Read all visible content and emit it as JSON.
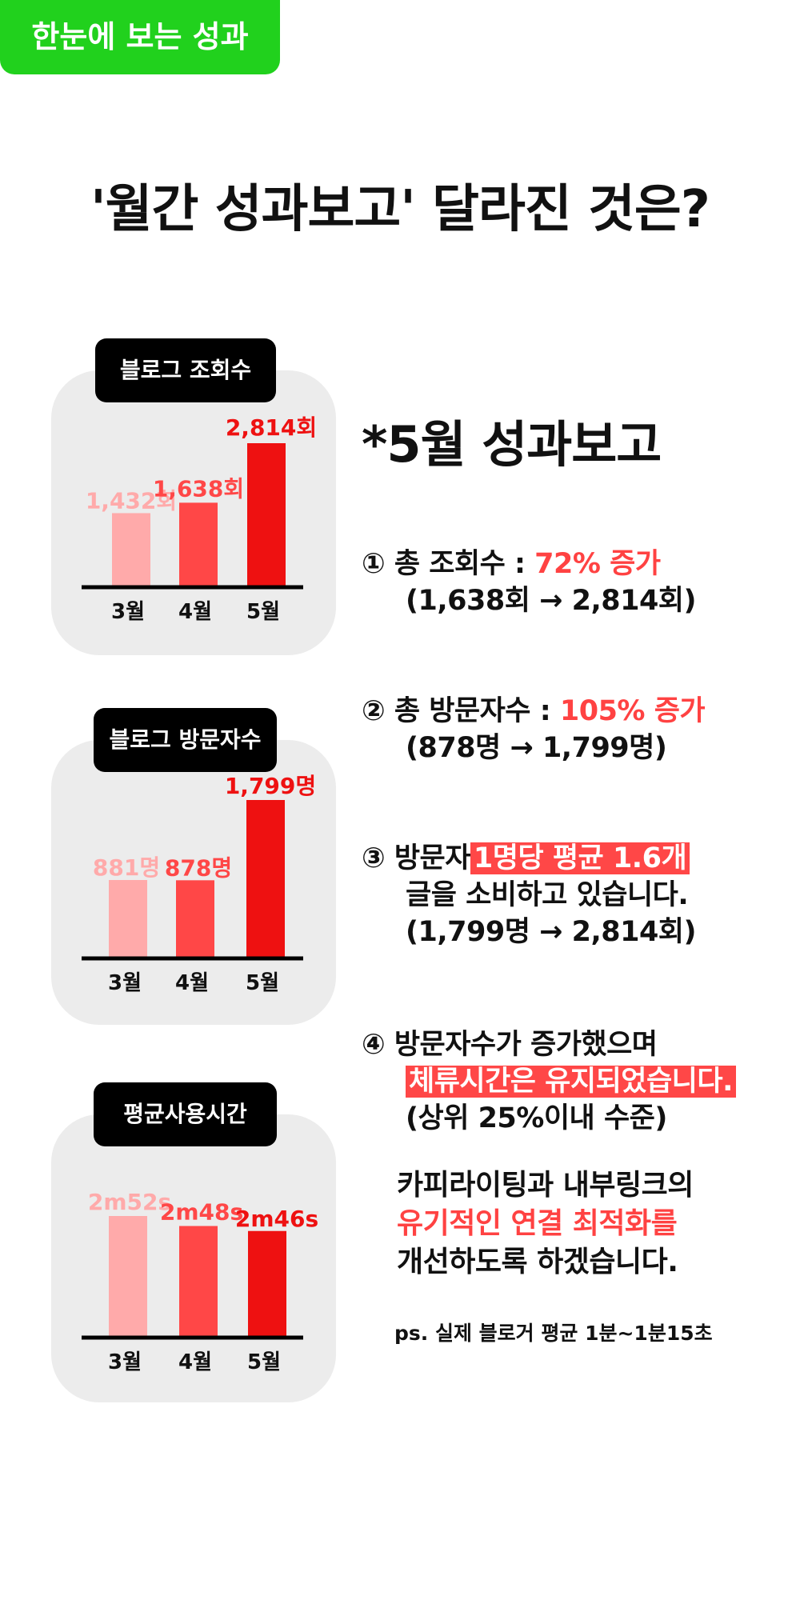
{
  "badge": "한눈에 보는 성과",
  "headline": "'월간 성과보고' 달라진 것은?",
  "colors": {
    "m3": "#ffaaaa",
    "m4": "#ff4747",
    "m5": "#ee1111",
    "green": "#21d11d",
    "highlight": "#ff4747"
  },
  "chart_data": [
    {
      "type": "bar",
      "title": "블로그 조회수",
      "categories": [
        "3월",
        "4월",
        "5월"
      ],
      "values": [
        1432,
        1638,
        2814
      ],
      "data_labels": [
        "1,432회",
        "1,638회",
        "2,814회"
      ]
    },
    {
      "type": "bar",
      "title": "블로그 방문자수",
      "categories": [
        "3월",
        "4월",
        "5월"
      ],
      "values": [
        881,
        878,
        1799
      ],
      "data_labels": [
        "881명",
        "878명",
        "1,799명"
      ]
    },
    {
      "type": "bar",
      "title": "평균사용시간",
      "categories": [
        "3월",
        "4월",
        "5월"
      ],
      "values": [
        172,
        168,
        166
      ],
      "data_labels": [
        "2m52s",
        "2m48s",
        "2m46s"
      ]
    }
  ],
  "report": {
    "title": "*5월 성과보고",
    "item1": {
      "prefix": "① 총 조회수 : ",
      "emph": "72% 증가",
      "detail": "(1,638회 → 2,814회)"
    },
    "item2": {
      "prefix": "② 총 방문자수 : ",
      "emph": "105% 증가",
      "detail": "(878명 → 1,799명)"
    },
    "item3": {
      "prefix": "③ 방문자",
      "emph": "1명당 평균 1.6개",
      "line2": "글을 소비하고 있습니다.",
      "detail": "(1,799명 → 2,814회)"
    },
    "item4": {
      "line1": "④ 방문자수가 증가했으며",
      "emph": "체류시간은 유지되었습니다.",
      "detail": "(상위 25%이내 수준)"
    },
    "closing": {
      "line1": "카피라이팅과 내부링크의",
      "emph": "유기적인 연결 최적화를",
      "line3": "개선하도록 하겠습니다."
    },
    "ps": "ps. 실제 블로거 평균 1분~1분15초"
  }
}
